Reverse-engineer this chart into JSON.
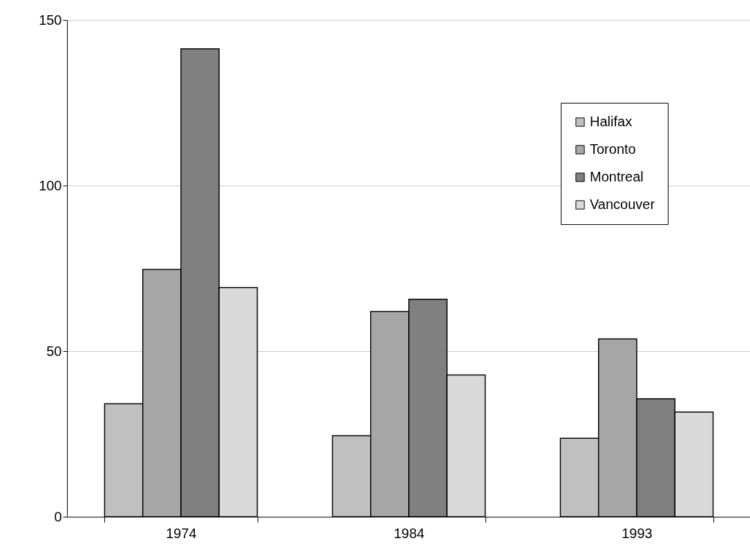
{
  "chart_data": {
    "type": "bar",
    "categories": [
      "1974",
      "1984",
      "1993"
    ],
    "series": [
      {
        "name": "Halifax",
        "color": "#c0c0c0",
        "values": [
          34.1,
          24.5,
          23.7
        ]
      },
      {
        "name": "Toronto",
        "color": "#a6a6a6",
        "values": [
          74.7,
          62.0,
          53.7
        ]
      },
      {
        "name": "Montreal",
        "color": "#808080",
        "values": [
          141.3,
          65.7,
          35.6
        ]
      },
      {
        "name": "Vancouver",
        "color": "#d9d9d9",
        "values": [
          69.2,
          42.8,
          31.6
        ]
      }
    ],
    "ylim": [
      0,
      150
    ],
    "yticks": [
      0,
      50,
      100,
      150
    ],
    "grid": "y",
    "legend": "top right"
  }
}
